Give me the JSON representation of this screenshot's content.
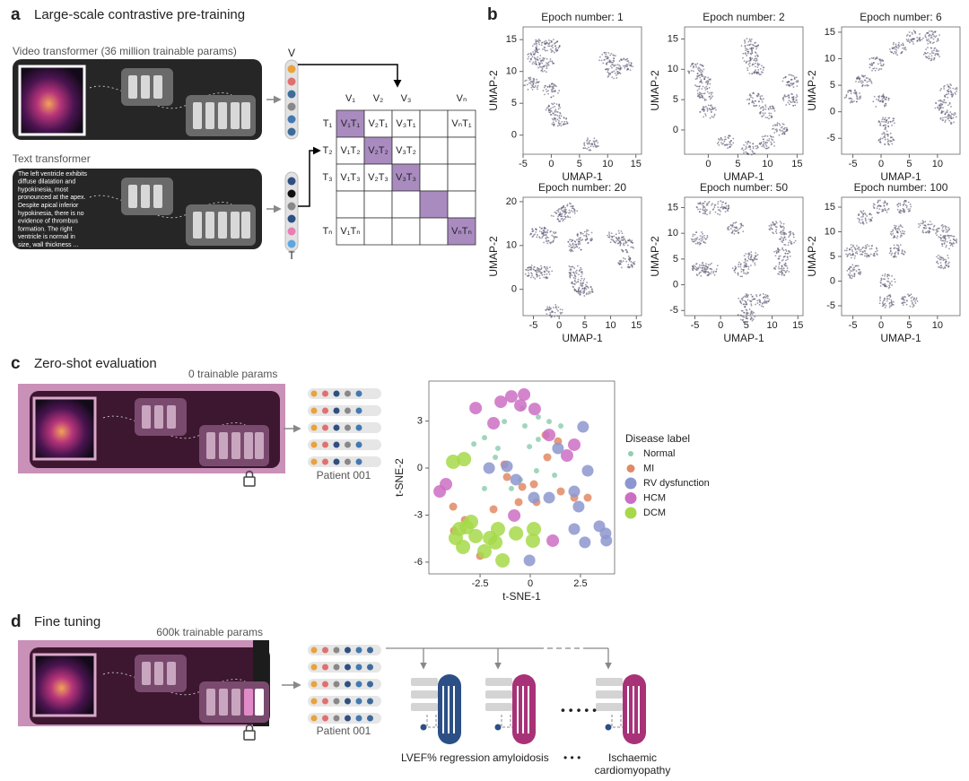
{
  "panels": {
    "a": {
      "label": "a",
      "title": "Large-scale contrastive pre-training",
      "video_label": "Video transformer (36 million trainable params)",
      "text_label": "Text transformer",
      "report_lines": [
        "The left ventricle exhibits",
        "diffuse dilatation and",
        "hypokinesia, most",
        "pronounced at the apex.",
        "Despite apical inferior",
        "hypokinesia, there is no",
        "evidence of thrombus",
        "formation. The right",
        "ventricle is normal in",
        "size, wall thickness ..."
      ],
      "v_label": "V",
      "t_label": "T",
      "matrix": {
        "col_headers": [
          "V₁",
          "V₂",
          "V₃",
          null,
          "Vₙ"
        ],
        "row_headers": [
          "T₁",
          "T₂",
          "T₃",
          null,
          "Tₙ"
        ],
        "cells": [
          [
            "V₁T₁",
            "V₂T₁",
            "V₃T₁",
            null,
            "VₙT₁"
          ],
          [
            "V₁T₂",
            "V₂T₂",
            "V₃T₂",
            null,
            null
          ],
          [
            "V₁T₃",
            "V₂T₃",
            "V₃T₃",
            null,
            null
          ],
          [
            null,
            null,
            null,
            null,
            null
          ],
          [
            "V₁Tₙ",
            null,
            null,
            null,
            "VₙTₙ"
          ]
        ]
      }
    },
    "b": {
      "label": "b"
    },
    "c": {
      "label": "c",
      "title": "Zero-shot evaluation",
      "params": "0 trainable params",
      "patient": "Patient 001"
    },
    "d": {
      "label": "d",
      "title": "Fine tuning",
      "params": "600k trainable params",
      "patient": "Patient 001",
      "head_labels": [
        "LVEF% regression",
        "amyloidosis"
      ],
      "last_head_lines": [
        "Ischaemic",
        "cardiomyopathy"
      ]
    }
  },
  "chart_data": [
    {
      "type": "scatter",
      "title": "Epoch number: 1",
      "x_label": "UMAP-1",
      "y_label": "UMAP-2",
      "xlim": [
        -5,
        16
      ],
      "xticks": [
        -5,
        0,
        5,
        10,
        15
      ],
      "ylim": [
        -3,
        17
      ],
      "yticks": [
        0,
        5,
        10,
        15
      ],
      "x": [
        -2,
        0,
        -3,
        -1,
        -3.5,
        0,
        0.5,
        1.5,
        10,
        11,
        13,
        7
      ],
      "y": [
        14,
        14,
        12,
        11,
        8,
        7,
        4,
        2,
        12,
        10,
        11,
        -1.5
      ]
    },
    {
      "type": "scatter",
      "title": "Epoch number: 2",
      "x_label": "UMAP-1",
      "y_label": "UMAP-2",
      "xlim": [
        -4,
        16
      ],
      "xticks": [
        0,
        5,
        10,
        15
      ],
      "ylim": [
        -4,
        17
      ],
      "yticks": [
        0,
        5,
        10,
        15
      ],
      "x": [
        -2,
        -1,
        -0.5,
        0,
        7,
        7,
        8,
        8,
        10,
        12,
        10,
        7,
        14,
        14,
        3
      ],
      "y": [
        10,
        8,
        6,
        3,
        14,
        12,
        10,
        5,
        3,
        0,
        -2,
        -3,
        8,
        5,
        -2
      ]
    },
    {
      "type": "scatter",
      "title": "Epoch number: 6",
      "x_label": "UMAP-1",
      "y_label": "UMAP-2",
      "xlim": [
        -7,
        14
      ],
      "xticks": [
        -5,
        0,
        5,
        10
      ],
      "ylim": [
        -8,
        16
      ],
      "yticks": [
        -5,
        0,
        5,
        10,
        15
      ],
      "x": [
        -3,
        -5,
        -1,
        3,
        6,
        9,
        0,
        1,
        1,
        12,
        11,
        12,
        9
      ],
      "y": [
        6,
        3,
        9,
        12,
        14,
        14,
        2,
        -2,
        -5,
        4,
        1,
        -1,
        11
      ]
    },
    {
      "type": "scatter",
      "title": "Epoch number: 20",
      "x_label": "UMAP-1",
      "y_label": "UMAP-2",
      "xlim": [
        -7,
        16
      ],
      "xticks": [
        -5,
        0,
        5,
        10,
        15
      ],
      "ylim": [
        -6,
        21
      ],
      "yticks": [
        0,
        10,
        20
      ],
      "x": [
        0,
        2,
        -4,
        -2,
        3,
        5,
        -5,
        -3,
        3,
        4,
        5,
        11,
        13,
        13,
        -1
      ],
      "y": [
        17,
        18,
        13,
        12,
        10,
        12,
        4,
        4,
        4,
        1,
        0,
        12,
        10,
        6,
        -5
      ]
    },
    {
      "type": "scatter",
      "title": "Epoch number: 50",
      "x_label": "UMAP-1",
      "y_label": "UMAP-2",
      "xlim": [
        -7,
        16
      ],
      "xticks": [
        -5,
        0,
        5,
        10,
        15
      ],
      "ylim": [
        -6,
        17
      ],
      "yticks": [
        -5,
        0,
        5,
        10,
        15
      ],
      "x": [
        -3,
        0,
        -4,
        3,
        -4,
        -2,
        4,
        8,
        5,
        5,
        11,
        13,
        12,
        12,
        6
      ],
      "y": [
        15,
        15,
        9,
        11,
        3,
        3,
        3,
        -3,
        -3,
        -6,
        11,
        9,
        6,
        3,
        5
      ]
    },
    {
      "type": "scatter",
      "title": "Epoch number: 100",
      "x_label": "UMAP-1",
      "y_label": "UMAP-2",
      "xlim": [
        -7,
        14
      ],
      "xticks": [
        -5,
        0,
        5,
        10
      ],
      "ylim": [
        -7,
        17
      ],
      "yticks": [
        -5,
        0,
        5,
        10,
        15
      ],
      "x": [
        -3,
        0,
        4,
        -5,
        -2,
        3,
        3,
        -5,
        1,
        1,
        5,
        11,
        12,
        11,
        8
      ],
      "y": [
        13,
        15,
        15,
        6,
        6,
        10,
        6,
        2,
        0,
        -4,
        -4,
        10,
        8,
        4,
        11
      ]
    },
    {
      "type": "scatter",
      "x_label": "t-SNE-1",
      "y_label": "t-SNE-2",
      "legend_title": "Disease label",
      "xlim": [
        -5.05,
        4.2
      ],
      "xticks": [
        -2.5,
        0,
        2.5
      ],
      "ylim": [
        -6.75,
        5.55
      ],
      "yticks": [
        3,
        0,
        -3,
        -6
      ],
      "series": [
        {
          "name": "Normal",
          "color": "#8fcfb0",
          "x": [
            -0.4,
            -1.29,
            -2.28,
            -2.81,
            -1.61,
            -1.74,
            -0.27,
            0.4,
            0.94,
            0.4,
            -0.04,
            -0.49,
            0.31,
            -0.94,
            -2.28,
            1.52,
            1.21
          ],
          "y": [
            3.83,
            2.97,
            1.94,
            1.54,
            1.26,
            0.69,
            2.69,
            3.26,
            2.97,
            1.83,
            1.37,
            -0.74,
            -0.17,
            -1.31,
            -1.31,
            2.69,
            -0.46
          ]
        },
        {
          "name": "MI",
          "color": "#e08a65",
          "x": [
            -1.29,
            -1.16,
            -0.4,
            0.18,
            -0.58,
            -1.83,
            -3.84,
            -3.26,
            -3.8,
            0.31,
            0.76,
            1.38,
            0.85,
            1.52,
            2.19,
            2.86,
            -2.5
          ],
          "y": [
            0.23,
            -0.57,
            -1.2,
            -1.03,
            -2.17,
            -2.63,
            -2.46,
            -3.31,
            -4.0,
            -2.17,
            2.11,
            1.71,
            0.69,
            -1.49,
            -1.89,
            -1.89,
            -5.6
          ]
        },
        {
          "name": "RV dysfunction",
          "color": "#8d96cf",
          "x": [
            -1.16,
            -2.05,
            0.18,
            0.94,
            2.63,
            2.86,
            2.41,
            2.19,
            2.72,
            3.44,
            3.75,
            3.79,
            -0.04,
            -0.71,
            1.38,
            2.19
          ],
          "y": [
            0.11,
            0,
            -1.89,
            -1.89,
            2.63,
            -0.17,
            -2.46,
            -3.89,
            -4.74,
            -3.71,
            -4.17,
            -4.63,
            -5.89,
            -0.74,
            1.26,
            -1.49
          ]
        },
        {
          "name": "HCM",
          "color": "#cc6fc4",
          "x": [
            -0.31,
            -0.94,
            -1.47,
            -0.49,
            -1.83,
            0.22,
            0.94,
            2.19,
            1.83,
            -4.51,
            -0.8,
            1.12,
            -4.2,
            -2.72
          ],
          "y": [
            4.69,
            4.57,
            4.23,
            4.0,
            2.86,
            3.77,
            2.11,
            1.49,
            0.8,
            -1.49,
            -3.03,
            -4.63,
            -1.03,
            3.83
          ]
        },
        {
          "name": "DCM",
          "color": "#a6d94a",
          "x": [
            -3.3,
            -3.84,
            -2.95,
            -3.53,
            -3.71,
            -3.35,
            -2.72,
            -2.01,
            -1.61,
            -1.74,
            -2.28,
            -1.38,
            -0.71,
            0.18,
            0.13,
            -3.17
          ],
          "y": [
            0.57,
            0.4,
            -3.43,
            -3.89,
            -4.46,
            -5.03,
            -4.34,
            -4.46,
            -3.89,
            -4.74,
            -5.31,
            -5.89,
            -4.17,
            -3.89,
            -4.63,
            -3.77
          ]
        }
      ]
    }
  ]
}
